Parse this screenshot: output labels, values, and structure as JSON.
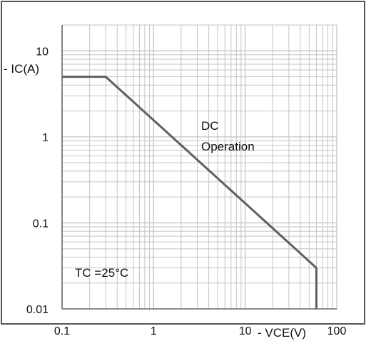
{
  "chart_data": {
    "type": "line",
    "xlabel": "- VCE(V)",
    "ylabel": "- IC(A)",
    "x_scale": "log",
    "y_scale": "log",
    "xlim": [
      0.1,
      100
    ],
    "ylim": [
      0.01,
      20
    ],
    "grid": true,
    "x_ticks": [
      "0.1",
      "1",
      "10",
      "100"
    ],
    "x_tick_values": [
      0.1,
      1,
      10,
      100
    ],
    "y_ticks": [
      "0.01",
      "0.1",
      "1",
      "10"
    ],
    "y_tick_values": [
      0.01,
      0.1,
      1,
      10
    ],
    "series": [
      {
        "name": "DC Operation",
        "x": [
          0.1,
          0.3,
          60,
          60
        ],
        "y": [
          5,
          5,
          0.03,
          0.01
        ]
      }
    ],
    "annotations": [
      {
        "text": "DC",
        "x": 4.2,
        "y": 1.55
      },
      {
        "text": "Operation",
        "x": 4.2,
        "y": 0.92
      },
      {
        "text": "TC =25°C",
        "x": 0.13,
        "y": 0.024
      }
    ],
    "colors": {
      "series": "#606060",
      "grid": "#c4c4c4",
      "axis": "#666666",
      "border": "#555555",
      "text": "#111111"
    }
  }
}
